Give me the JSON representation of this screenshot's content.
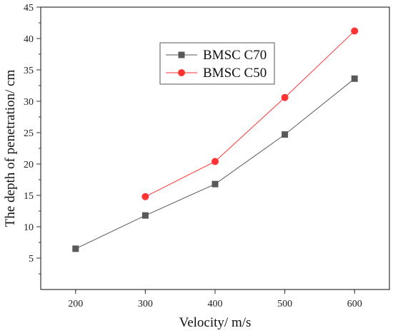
{
  "chart_data": {
    "type": "line",
    "title": "",
    "xlabel": "Velocity/ m/s",
    "ylabel": "The depth of penetration/ cm",
    "xlim": [
      150,
      650
    ],
    "ylim": [
      0,
      45
    ],
    "xticks": [
      200,
      300,
      400,
      500,
      600
    ],
    "yticks": [
      5,
      10,
      15,
      20,
      25,
      30,
      35,
      40,
      45
    ],
    "grid": false,
    "legend": "top-center",
    "series": [
      {
        "name": "BMSC C70",
        "color": "#595959",
        "marker": "square",
        "x": [
          200,
          300,
          400,
          500,
          600
        ],
        "y": [
          6.5,
          11.8,
          16.8,
          24.7,
          33.6
        ]
      },
      {
        "name": "BMSC C50",
        "color": "#ff3333",
        "marker": "circle",
        "x": [
          300,
          400,
          500,
          600
        ],
        "y": [
          14.8,
          20.4,
          30.6,
          41.2
        ]
      }
    ]
  }
}
